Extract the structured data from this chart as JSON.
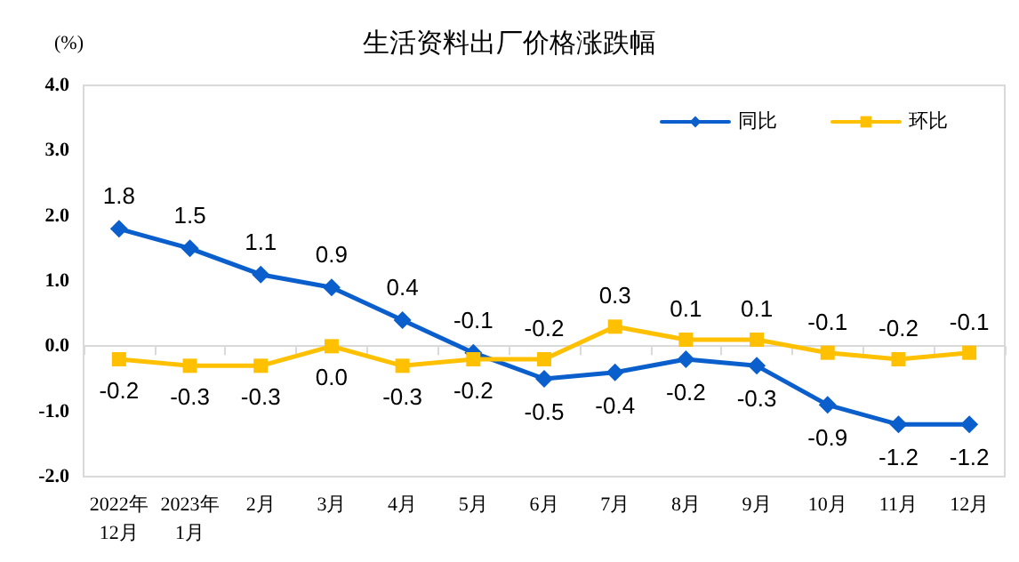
{
  "chart_data": {
    "type": "line",
    "title": "生活资料出厂价格涨跌幅",
    "ylabel": "(%)",
    "categories": [
      "2022年\n12月",
      "2023年\n1月",
      "2月",
      "3月",
      "4月",
      "5月",
      "6月",
      "7月",
      "8月",
      "9月",
      "10月",
      "11月",
      "12月"
    ],
    "series": [
      {
        "name": "同比",
        "color": "#0b5fcc",
        "marker": "diamond",
        "values": [
          1.8,
          1.5,
          1.1,
          0.9,
          0.4,
          -0.1,
          -0.5,
          -0.4,
          -0.2,
          -0.3,
          -0.9,
          -1.2,
          -1.2
        ],
        "value_labels": [
          "1.8",
          "1.5",
          "1.1",
          "0.9",
          "0.4",
          "-0.1",
          "-0.5",
          "-0.4",
          "-0.2",
          "-0.3",
          "-0.9",
          "-1.2",
          "-1.2"
        ]
      },
      {
        "name": "环比",
        "color": "#ffc000",
        "marker": "square",
        "values": [
          -0.2,
          -0.3,
          -0.3,
          0.0,
          -0.3,
          -0.2,
          -0.2,
          0.3,
          0.1,
          0.1,
          -0.1,
          -0.2,
          -0.1
        ],
        "value_labels": [
          "-0.2",
          "-0.3",
          "-0.3",
          "0.0",
          "-0.3",
          "-0.2",
          "-0.2",
          "0.3",
          "0.1",
          "0.1",
          "-0.1",
          "-0.2",
          "-0.1"
        ]
      }
    ],
    "ylim": [
      -2,
      4
    ],
    "yticks": [
      {
        "value": -2,
        "label": "-2.0"
      },
      {
        "value": -1,
        "label": "-1.0"
      },
      {
        "value": 0,
        "label": "0.0"
      },
      {
        "value": 1,
        "label": "1.0"
      },
      {
        "value": 2,
        "label": "2.0"
      },
      {
        "value": 3,
        "label": "3.0"
      },
      {
        "value": 4,
        "label": "4.0"
      }
    ],
    "legend": "top right",
    "line_style": "solid"
  }
}
